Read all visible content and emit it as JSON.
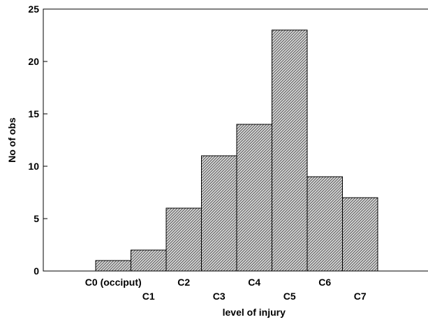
{
  "chart_data": {
    "type": "bar",
    "title": "",
    "xlabel": "level of injury",
    "ylabel": "No of obs",
    "categories": [
      "C0 (occiput)",
      "C1",
      "C2",
      "C3",
      "C4",
      "C5",
      "C6",
      "C7"
    ],
    "values": [
      1,
      2,
      6,
      11,
      14,
      23,
      9,
      7
    ],
    "ylim": [
      0,
      25
    ],
    "yticks": [
      0,
      5,
      10,
      15,
      20,
      25
    ],
    "grid": false,
    "bar_fill": "hatched",
    "colors": {
      "bar_fill": "#d8d8d8",
      "bar_hatch": "#4a4a4a",
      "bar_edge": "#000000",
      "axis": "#000000"
    }
  }
}
